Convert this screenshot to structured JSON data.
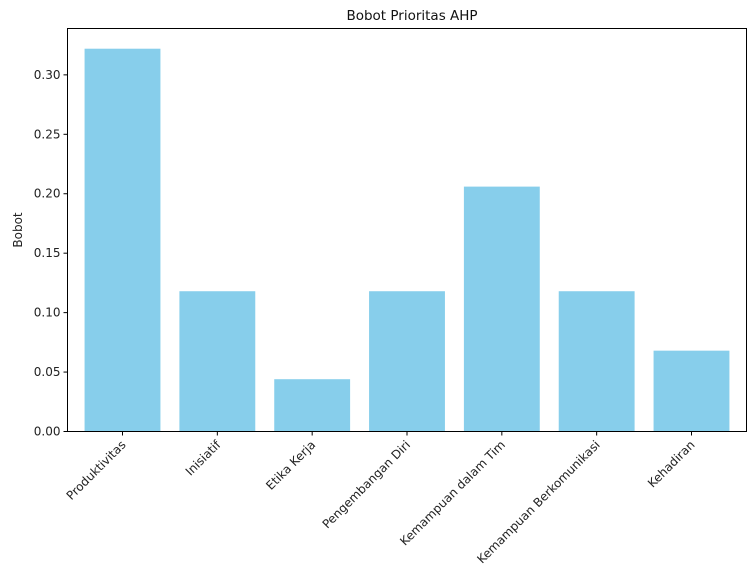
{
  "chart_data": {
    "type": "bar",
    "title": "Bobot Prioritas AHP",
    "xlabel": "",
    "ylabel": "Bobot",
    "categories": [
      "Produktivitas",
      "Inisiatif",
      "Etika Kerja",
      "Pengembangan Diri",
      "Kemampuan dalam Tim",
      "Kemampuan Berkomunikasi",
      "Kehadiran"
    ],
    "values": [
      0.322,
      0.118,
      0.044,
      0.118,
      0.206,
      0.118,
      0.068
    ],
    "ylim": [
      0,
      0.339
    ],
    "yticks": [
      "0.00",
      "0.05",
      "0.10",
      "0.15",
      "0.20",
      "0.25",
      "0.30"
    ],
    "bar_color": "#87CEEB",
    "grid": false
  }
}
